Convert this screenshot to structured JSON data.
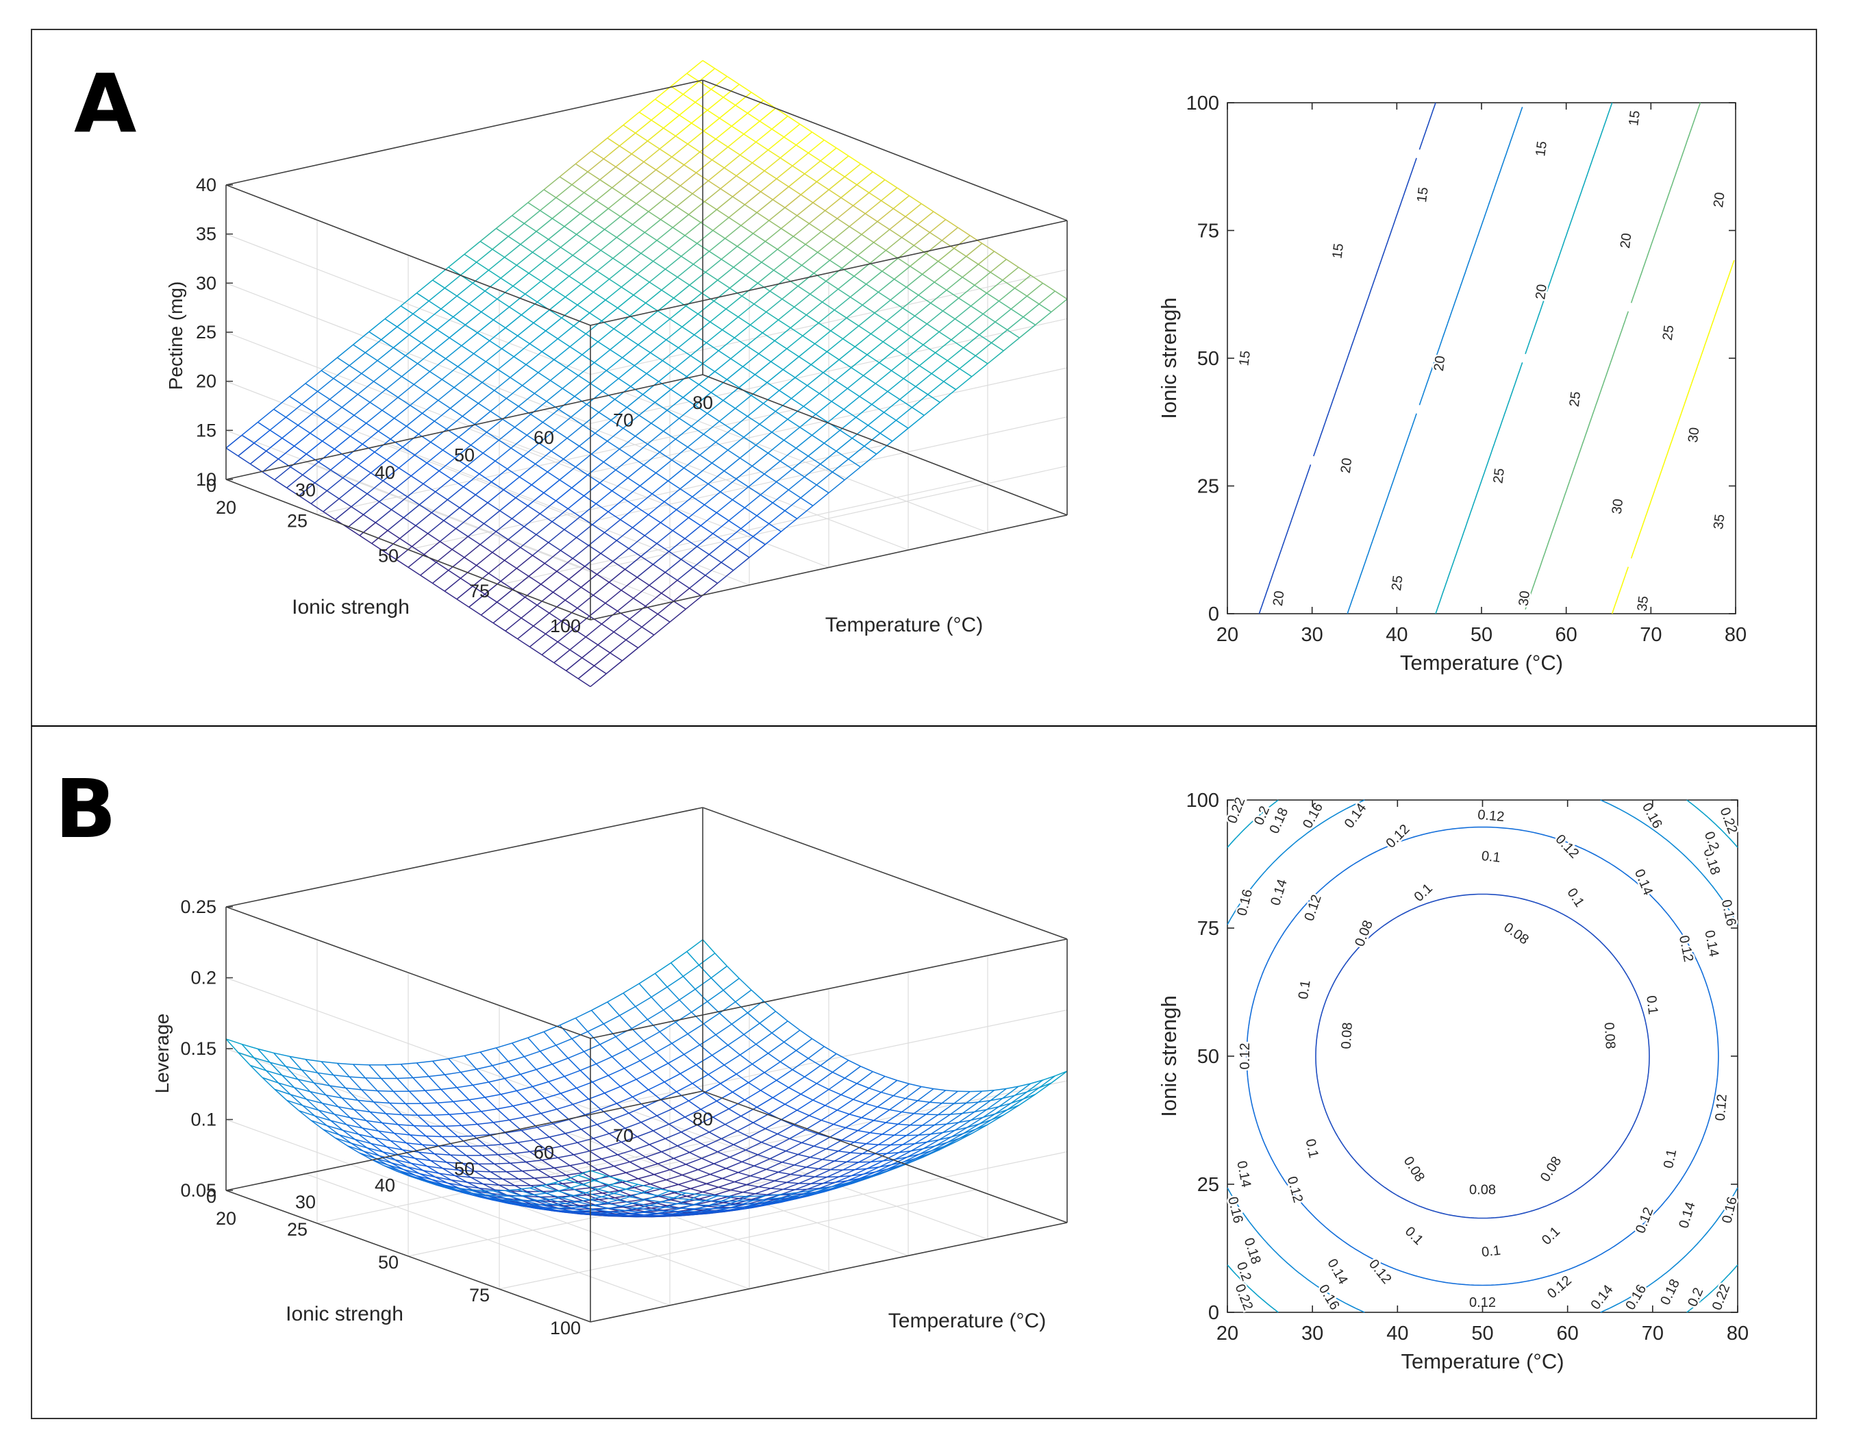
{
  "figure": {
    "panels": [
      {
        "letter": "A"
      },
      {
        "letter": "B"
      }
    ]
  },
  "chart_data": [
    {
      "panel": "A",
      "type": "surface",
      "model": "linear",
      "coefficients": {
        "intercept": 3.6,
        "temperature": 0.48,
        "ionic_strength": -0.1
      },
      "zlabel": "Pectine (mg)",
      "xlabel": "Temperature (°C)",
      "ylabel": "Ionic strengh",
      "xlim": [
        20,
        80
      ],
      "ylim": [
        0,
        100
      ],
      "zlim": [
        10,
        40
      ],
      "xticks": [
        20,
        30,
        40,
        50,
        60,
        70,
        80
      ],
      "yticks": [
        0,
        25,
        50,
        75,
        100
      ],
      "zticks": [
        10,
        15,
        20,
        25,
        30,
        35,
        40
      ],
      "grid": true
    },
    {
      "panel": "A",
      "type": "contour",
      "model": "linear",
      "coefficients": {
        "intercept": 3.6,
        "temperature": 0.48,
        "ionic_strength": -0.1
      },
      "xlabel": "Temperature (°C)",
      "ylabel": "Ionic strengh",
      "xlim": [
        20,
        80
      ],
      "ylim": [
        0,
        100
      ],
      "xticks": [
        20,
        30,
        40,
        50,
        60,
        70,
        80
      ],
      "yticks": [
        0,
        25,
        50,
        75,
        100
      ],
      "levels": [
        15,
        20,
        25,
        30,
        35
      ],
      "contour_labels": [
        {
          "text": "15",
          "x": 22,
          "y": 50
        },
        {
          "text": "15",
          "x": 33,
          "y": 71
        },
        {
          "text": "15",
          "x": 43,
          "y": 82
        },
        {
          "text": "15",
          "x": 57,
          "y": 91
        },
        {
          "text": "15",
          "x": 68,
          "y": 97
        },
        {
          "text": "20",
          "x": 26,
          "y": 3
        },
        {
          "text": "20",
          "x": 34,
          "y": 29
        },
        {
          "text": "20",
          "x": 45,
          "y": 49
        },
        {
          "text": "20",
          "x": 57,
          "y": 63
        },
        {
          "text": "20",
          "x": 67,
          "y": 73
        },
        {
          "text": "20",
          "x": 78,
          "y": 81
        },
        {
          "text": "25",
          "x": 40,
          "y": 6
        },
        {
          "text": "25",
          "x": 52,
          "y": 27
        },
        {
          "text": "25",
          "x": 61,
          "y": 42
        },
        {
          "text": "25",
          "x": 72,
          "y": 55
        },
        {
          "text": "30",
          "x": 55,
          "y": 3
        },
        {
          "text": "30",
          "x": 66,
          "y": 21
        },
        {
          "text": "30",
          "x": 75,
          "y": 35
        },
        {
          "text": "35",
          "x": 69,
          "y": 2
        },
        {
          "text": "35",
          "x": 78,
          "y": 18
        }
      ]
    },
    {
      "panel": "B",
      "type": "surface",
      "model": "quadratic",
      "coefficients": {
        "min": 0.06,
        "temperature_sq": 5.2e-05,
        "ionic_strength_sq": 2e-05,
        "center": [
          50,
          50
        ]
      },
      "zlabel": "Leverage",
      "xlabel": "Temperature (°C)",
      "ylabel": "Ionic strengh",
      "xlim": [
        20,
        80
      ],
      "ylim": [
        0,
        100
      ],
      "zlim": [
        0.05,
        0.25
      ],
      "xticks": [
        20,
        30,
        40,
        50,
        60,
        70,
        80
      ],
      "yticks": [
        0,
        25,
        50,
        75,
        100
      ],
      "zticks": [
        0.05,
        0.1,
        0.15,
        0.2,
        0.25
      ],
      "grid": true
    },
    {
      "panel": "B",
      "type": "contour",
      "model": "quadratic",
      "coefficients": {
        "min": 0.06,
        "temperature_sq": 5.2e-05,
        "ionic_strength_sq": 2e-05,
        "center": [
          50,
          50
        ]
      },
      "xlabel": "Temperature (°C)",
      "ylabel": "Ionic strengh",
      "xlim": [
        20,
        80
      ],
      "ylim": [
        0,
        100
      ],
      "xticks": [
        20,
        30,
        40,
        50,
        60,
        70,
        80
      ],
      "yticks": [
        0,
        25,
        50,
        75,
        100
      ],
      "levels": [
        0.08,
        0.1,
        0.12,
        0.14,
        0.16,
        0.18,
        0.2,
        0.22
      ],
      "contour_labels": [
        {
          "text": "0.08",
          "x": 36,
          "y": 74
        },
        {
          "text": "0.08",
          "x": 54,
          "y": 74
        },
        {
          "text": "0.08",
          "x": 34,
          "y": 54
        },
        {
          "text": "0.08",
          "x": 65,
          "y": 54
        },
        {
          "text": "0.08",
          "x": 42,
          "y": 28
        },
        {
          "text": "0.08",
          "x": 50,
          "y": 24
        },
        {
          "text": "0.08",
          "x": 58,
          "y": 28
        },
        {
          "text": "0.1",
          "x": 43,
          "y": 82
        },
        {
          "text": "0.1",
          "x": 51,
          "y": 89
        },
        {
          "text": "0.1",
          "x": 61,
          "y": 81
        },
        {
          "text": "0.1",
          "x": 29,
          "y": 63
        },
        {
          "text": "0.1",
          "x": 70,
          "y": 60
        },
        {
          "text": "0.1",
          "x": 30,
          "y": 32
        },
        {
          "text": "0.1",
          "x": 72,
          "y": 30
        },
        {
          "text": "0.1",
          "x": 42,
          "y": 15
        },
        {
          "text": "0.1",
          "x": 51,
          "y": 12
        },
        {
          "text": "0.1",
          "x": 58,
          "y": 15
        },
        {
          "text": "0.12",
          "x": 51,
          "y": 97
        },
        {
          "text": "0.12",
          "x": 40,
          "y": 93
        },
        {
          "text": "0.12",
          "x": 60,
          "y": 91
        },
        {
          "text": "0.12",
          "x": 30,
          "y": 79
        },
        {
          "text": "0.12",
          "x": 74,
          "y": 71
        },
        {
          "text": "0.12",
          "x": 22,
          "y": 50
        },
        {
          "text": "0.12",
          "x": 78,
          "y": 40
        },
        {
          "text": "0.12",
          "x": 28,
          "y": 24
        },
        {
          "text": "0.12",
          "x": 69,
          "y": 18
        },
        {
          "text": "0.12",
          "x": 38,
          "y": 8
        },
        {
          "text": "0.12",
          "x": 50,
          "y": 2
        },
        {
          "text": "0.12",
          "x": 59,
          "y": 5
        },
        {
          "text": "0.14",
          "x": 35,
          "y": 97
        },
        {
          "text": "0.14",
          "x": 69,
          "y": 84
        },
        {
          "text": "0.14",
          "x": 26,
          "y": 82
        },
        {
          "text": "0.14",
          "x": 77,
          "y": 72
        },
        {
          "text": "0.14",
          "x": 22,
          "y": 27
        },
        {
          "text": "0.14",
          "x": 74,
          "y": 19
        },
        {
          "text": "0.14",
          "x": 33,
          "y": 8
        },
        {
          "text": "0.14",
          "x": 64,
          "y": 3
        },
        {
          "text": "0.16",
          "x": 30,
          "y": 97
        },
        {
          "text": "0.16",
          "x": 70,
          "y": 97
        },
        {
          "text": "0.16",
          "x": 22,
          "y": 80
        },
        {
          "text": "0.16",
          "x": 79,
          "y": 78
        },
        {
          "text": "0.16",
          "x": 21,
          "y": 20
        },
        {
          "text": "0.16",
          "x": 79,
          "y": 20
        },
        {
          "text": "0.16",
          "x": 32,
          "y": 3
        },
        {
          "text": "0.16",
          "x": 68,
          "y": 3
        },
        {
          "text": "0.18",
          "x": 26,
          "y": 96
        },
        {
          "text": "0.18",
          "x": 77,
          "y": 88
        },
        {
          "text": "0.18",
          "x": 23,
          "y": 12
        },
        {
          "text": "0.18",
          "x": 72,
          "y": 4
        },
        {
          "text": "0.2",
          "x": 24,
          "y": 97
        },
        {
          "text": "0.2",
          "x": 77,
          "y": 92
        },
        {
          "text": "0.2",
          "x": 22,
          "y": 8
        },
        {
          "text": "0.2",
          "x": 75,
          "y": 3
        },
        {
          "text": "0.22",
          "x": 21,
          "y": 98
        },
        {
          "text": "0.22",
          "x": 79,
          "y": 96
        },
        {
          "text": "0.22",
          "x": 22,
          "y": 3
        },
        {
          "text": "0.22",
          "x": 78,
          "y": 3
        }
      ]
    }
  ]
}
